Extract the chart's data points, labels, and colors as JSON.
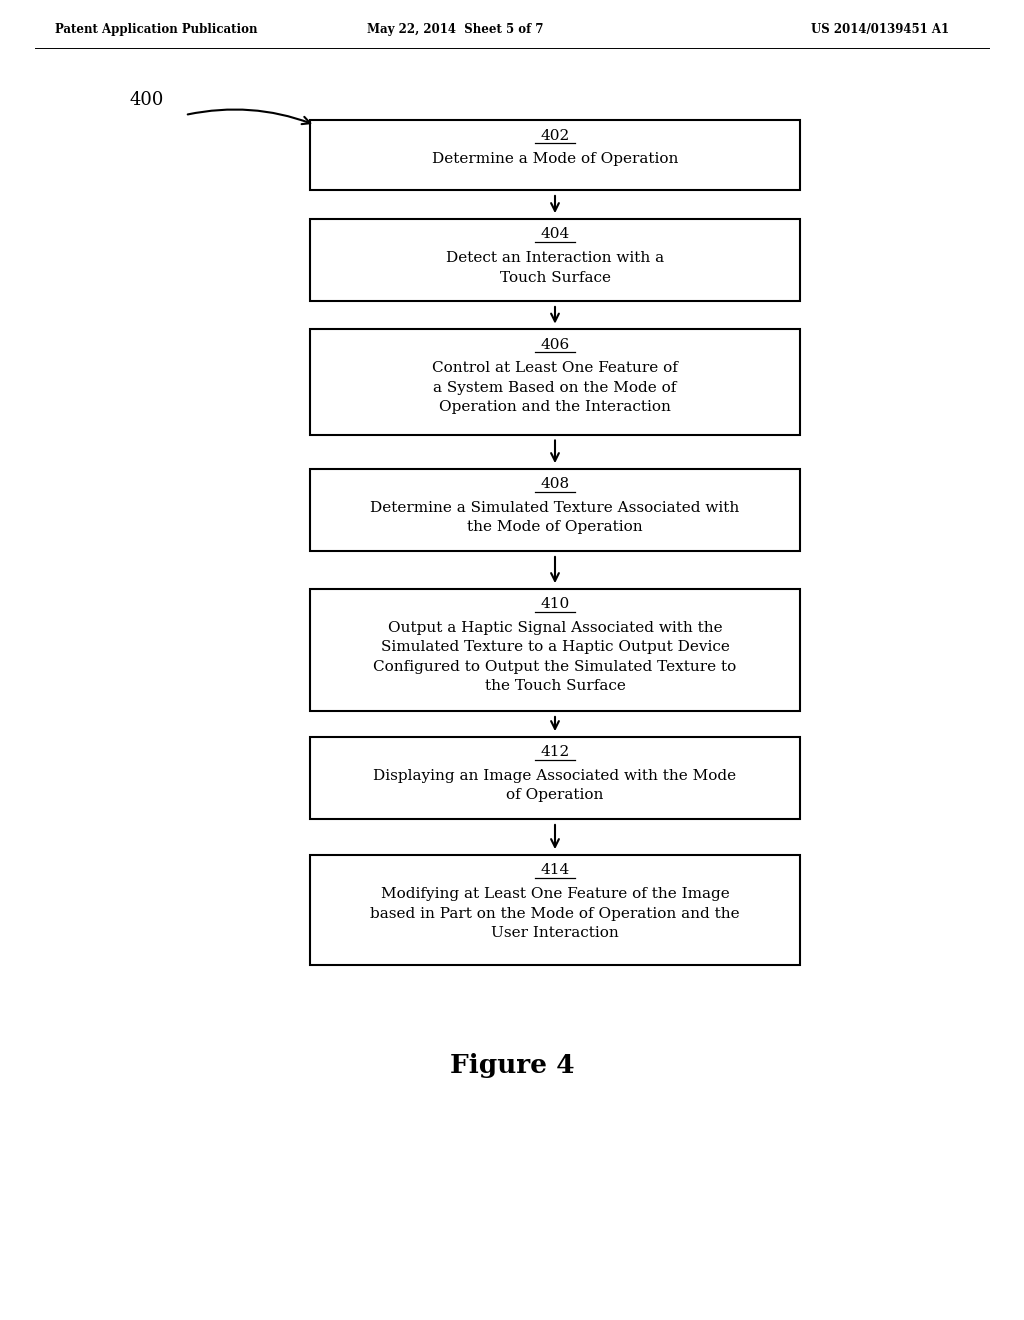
{
  "header_left": "Patent Application Publication",
  "header_mid": "May 22, 2014  Sheet 5 of 7",
  "header_right": "US 2014/0139451 A1",
  "figure_label": "Figure 4",
  "diagram_label": "400",
  "background_color": "#ffffff",
  "box_edge_color": "#000000",
  "box_fill_color": "#ffffff",
  "arrow_color": "#000000",
  "boxes": [
    {
      "id": "402",
      "label": "402",
      "lines": [
        "Determine a Mode of Operation"
      ]
    },
    {
      "id": "404",
      "label": "404",
      "lines": [
        "Detect an Interaction with a",
        "Touch Surface"
      ]
    },
    {
      "id": "406",
      "label": "406",
      "lines": [
        "Control at Least One Feature of",
        "a System Based on the Mode of",
        "Operation and the Interaction"
      ]
    },
    {
      "id": "408",
      "label": "408",
      "lines": [
        "Determine a Simulated Texture Associated with",
        "the Mode of Operation"
      ]
    },
    {
      "id": "410",
      "label": "410",
      "lines": [
        "Output a Haptic Signal Associated with the",
        "Simulated Texture to a Haptic Output Device",
        "Configured to Output the Simulated Texture to",
        "the Touch Surface"
      ]
    },
    {
      "id": "412",
      "label": "412",
      "lines": [
        "Displaying an Image Associated with the Mode",
        "of Operation"
      ]
    },
    {
      "id": "414",
      "label": "414",
      "lines": [
        "Modifying at Least One Feature of the Image",
        "based in Part on the Mode of Operation and the",
        "User Interaction"
      ]
    }
  ]
}
